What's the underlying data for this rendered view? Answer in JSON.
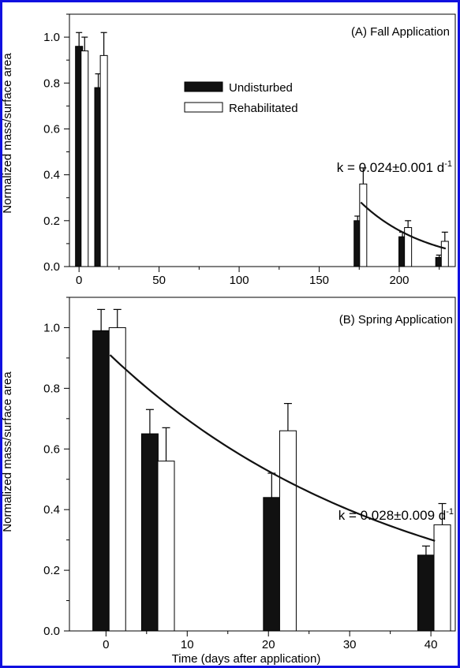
{
  "colors": {
    "frame": "#1010e0",
    "undisturbed": "#111111",
    "rehabilitated": "#ffffff",
    "axis": "#000000"
  },
  "legend": {
    "undisturbed": "Undisturbed",
    "rehabilitated": "Rehabilitated"
  },
  "chart_data": [
    {
      "type": "bar",
      "panel": "A",
      "title": "(A) Fall Application",
      "ylabel": "Normalized mass/surface area",
      "xlabel": "",
      "xlim": [
        -6,
        235
      ],
      "ylim": [
        0,
        1.1
      ],
      "xticks": [
        0,
        50,
        100,
        150,
        200
      ],
      "yticks": [
        0.0,
        0.2,
        0.4,
        0.6,
        0.8,
        1.0
      ],
      "grid": false,
      "legend_position": "upper-middle",
      "series": [
        {
          "name": "Undisturbed",
          "points": [
            {
              "x": 0,
              "value": 0.96,
              "err": 0.06
            },
            {
              "x": 12,
              "value": 0.78,
              "err": 0.06
            },
            {
              "x": 174,
              "value": 0.2,
              "err": 0.02
            },
            {
              "x": 202,
              "value": 0.13,
              "err": 0.02
            },
            {
              "x": 225,
              "value": 0.04,
              "err": 0.01
            }
          ]
        },
        {
          "name": "Rehabilitated",
          "points": [
            {
              "x": 3.5,
              "value": 0.94,
              "err": 0.06
            },
            {
              "x": 15.5,
              "value": 0.92,
              "err": 0.1
            },
            {
              "x": 177.5,
              "value": 0.36,
              "err": 0.07
            },
            {
              "x": 205.5,
              "value": 0.17,
              "err": 0.03
            },
            {
              "x": 228.5,
              "value": 0.11,
              "err": 0.04
            }
          ]
        }
      ],
      "fit": {
        "x_start": 176,
        "x_end": 229,
        "y_start": 0.28,
        "k": 0.024
      },
      "annotation": "k = 0.024±0.001 d",
      "annotation_unit_sup": "-1"
    },
    {
      "type": "bar",
      "panel": "B",
      "title": "(B) Spring Application",
      "ylabel": "Normalized mass/surface area",
      "xlabel": "Time (days after application)",
      "xlim": [
        -4.5,
        43
      ],
      "ylim": [
        0,
        1.1
      ],
      "xticks": [
        0,
        10,
        20,
        30,
        40
      ],
      "yticks": [
        0.0,
        0.2,
        0.4,
        0.6,
        0.8,
        1.0
      ],
      "grid": false,
      "series": [
        {
          "name": "Undisturbed",
          "points": [
            {
              "x": -0.6,
              "value": 0.99,
              "err": 0.07
            },
            {
              "x": 5.4,
              "value": 0.65,
              "err": 0.08
            },
            {
              "x": 20.4,
              "value": 0.44,
              "err": 0.08
            },
            {
              "x": 39.4,
              "value": 0.25,
              "err": 0.03
            }
          ]
        },
        {
          "name": "Rehabilitated",
          "points": [
            {
              "x": 1.4,
              "value": 1.0,
              "err": 0.06
            },
            {
              "x": 7.4,
              "value": 0.56,
              "err": 0.11
            },
            {
              "x": 22.4,
              "value": 0.66,
              "err": 0.09
            },
            {
              "x": 41.4,
              "value": 0.35,
              "err": 0.07
            }
          ]
        }
      ],
      "fit": {
        "x_start": 0.5,
        "x_end": 40.5,
        "y_start": 0.91,
        "k": 0.028
      },
      "annotation": "k = 0.028±0.009 d",
      "annotation_unit_sup": "-1"
    }
  ]
}
